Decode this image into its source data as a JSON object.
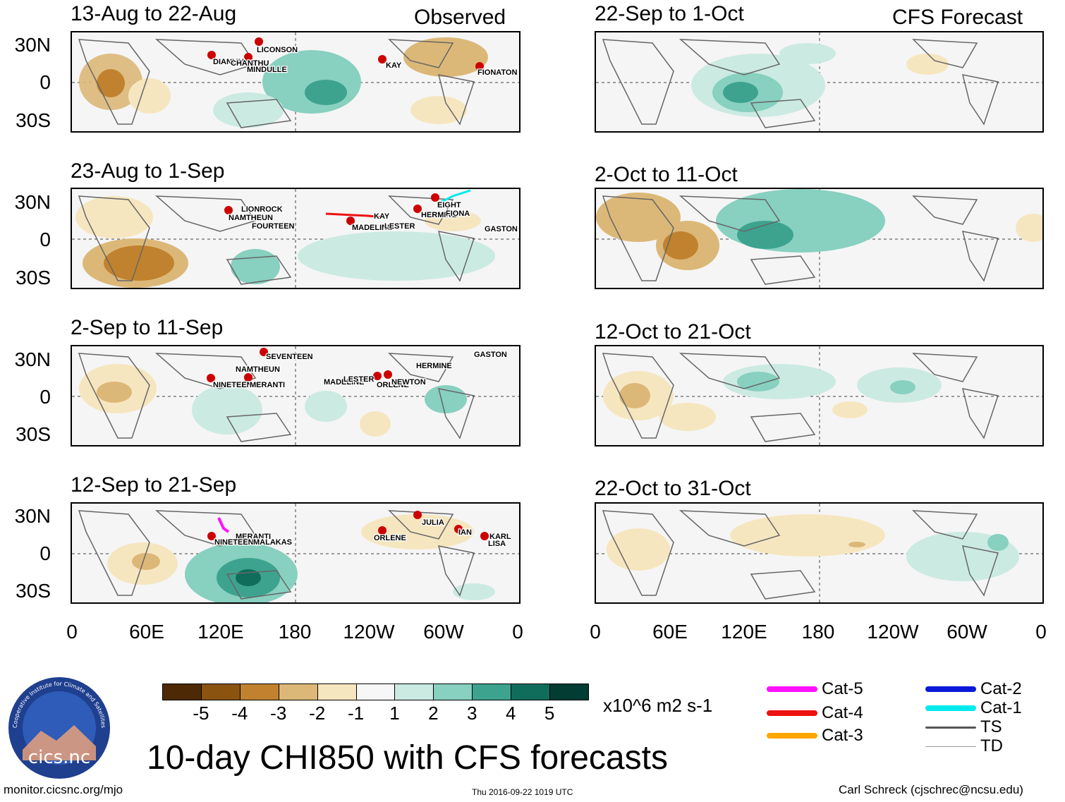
{
  "headers": {
    "observed": "Observed",
    "forecast": "CFS Forecast"
  },
  "panels": {
    "left": [
      {
        "title": "13-Aug to 22-Aug",
        "storms": [
          "LICONSON",
          "DIANMU",
          "CHANTHU",
          "MINDULLE",
          "KAY",
          "FIONATON"
        ]
      },
      {
        "title": "23-Aug to 1-Sep",
        "storms": [
          "LIONROCK",
          "NAMTHEUN",
          "FOURTEEN",
          "KAY",
          "MADELINE",
          "LESTER",
          "EIGHT",
          "HERMINE",
          "FIONA",
          "GASTON"
        ]
      },
      {
        "title": "2-Sep to 11-Sep",
        "storms": [
          "SEVENTEEN",
          "NAMTHEUN",
          "NINETEEN",
          "MERANTI",
          "GASTON",
          "HERMINE",
          "MADELINE",
          "LESTER",
          "ORLENE",
          "NEWTON"
        ]
      },
      {
        "title": "12-Sep to 21-Sep",
        "storms": [
          "MERANTI",
          "NINETEEN",
          "MALAKAS",
          "JULIA",
          "ORLENE",
          "IAN",
          "KARL",
          "LISA"
        ]
      }
    ],
    "right": [
      {
        "title": "22-Sep to 1-Oct"
      },
      {
        "title": "2-Oct to 11-Oct"
      },
      {
        "title": "12-Oct to 21-Oct"
      },
      {
        "title": "22-Oct to 31-Oct"
      }
    ]
  },
  "axes": {
    "lat_labels": [
      "30N",
      "0",
      "30S"
    ],
    "lon_labels": [
      "0",
      "60E",
      "120E",
      "180",
      "120W",
      "60W",
      "0"
    ]
  },
  "colorbar": {
    "colors": [
      "#4d2a05",
      "#8a5310",
      "#c1822f",
      "#dcb878",
      "#f6e6c0",
      "#f7f7f7",
      "#cbeae2",
      "#88d0c0",
      "#3da38f",
      "#106d5c",
      "#033c33"
    ],
    "ticks": [
      "-5",
      "-4",
      "-3",
      "-2",
      "-1",
      "1",
      "2",
      "3",
      "4",
      "5"
    ],
    "units": "x10^6 m2 s-1"
  },
  "storm_legend": [
    {
      "label": "Cat-5",
      "color": "#ff10ff"
    },
    {
      "label": "Cat-4",
      "color": "#ee1111"
    },
    {
      "label": "Cat-3",
      "color": "#ffa500"
    },
    {
      "label": "Cat-2",
      "color": "#0a1ad8"
    },
    {
      "label": "Cat-1",
      "color": "#00eaee"
    },
    {
      "label": "TS",
      "color": "#555555"
    },
    {
      "label": "TD",
      "color": "#999999"
    }
  ],
  "logo": {
    "text": "cics.nc",
    "ring_text": "Cooperative Institute for Climate and Satellites"
  },
  "footer": {
    "main_title": "10-day CHI850 with CFS forecasts",
    "url": "monitor.cicsnc.org/mjo",
    "timestamp": "Thu 2016-09-22 1019 UTC",
    "credit": "Carl Schreck (cjschrec@ncsu.edu)"
  }
}
